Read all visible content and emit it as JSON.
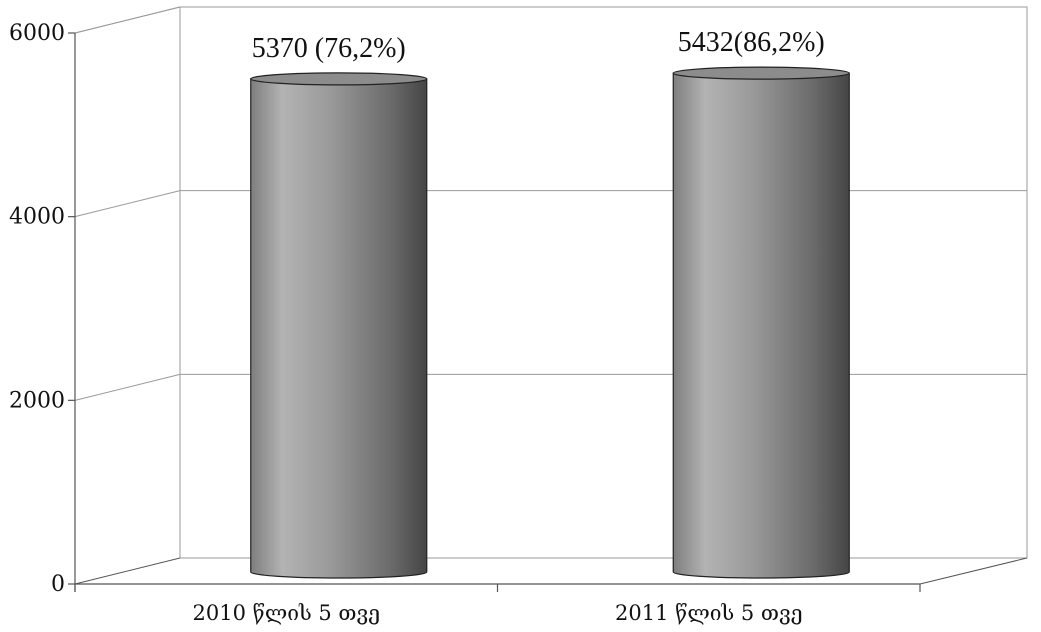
{
  "chart_data": {
    "type": "bar",
    "style": "3d-cylinder",
    "categories": [
      "2010 წლის 5 თვე",
      "2011 წლის 5 თვე"
    ],
    "values": [
      5370,
      5432
    ],
    "data_labels": [
      "5370  (76,2%)",
      "5432(86,2%)"
    ],
    "title": "",
    "xlabel": "",
    "ylabel": "",
    "ylim": [
      0,
      6000
    ],
    "yticks": [
      0,
      2000,
      4000,
      6000
    ],
    "grid": true,
    "legend": "none",
    "colors": {
      "bar_light": "#b0b0b0",
      "bar_dark": "#4a4a4a",
      "bar_top": "#8c8c8c",
      "grid": "#9a9a9a",
      "axis": "#555555"
    }
  }
}
